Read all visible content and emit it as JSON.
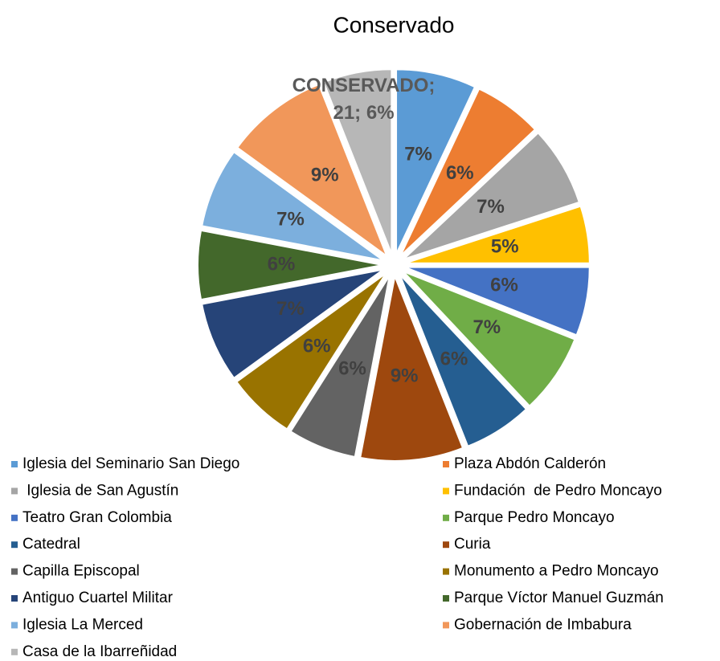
{
  "chart_data": {
    "type": "pie",
    "title": "Conservado",
    "categories": [
      "Iglesia del Seminario San Diego",
      "Plaza Abdón Calderón",
      " Iglesia de San Agustín",
      "Fundación  de Pedro Moncayo",
      "Teatro Gran Colombia",
      "Parque Pedro Moncayo",
      "Catedral",
      "Curia",
      "Capilla Episcopal",
      "Monumento a Pedro Moncayo",
      "Antiguo Cuartel Militar",
      "Parque Víctor Manuel Guzmán",
      "Iglesia La Merced",
      "Gobernación de Imbabura",
      "Casa de la Ibarreñidad"
    ],
    "values": [
      7,
      6,
      7,
      5,
      6,
      7,
      6,
      9,
      6,
      6,
      7,
      6,
      7,
      9,
      6
    ],
    "value_labels": [
      "7%",
      "6%",
      "7%",
      "5%",
      "6%",
      "7%",
      "6%",
      "9%",
      "6%",
      "6%",
      "7%",
      "6%",
      "7%",
      "9%",
      "CONSERVADO; 21; 6%"
    ],
    "colors": [
      "#5b9bd5",
      "#ed7d31",
      "#a5a5a5",
      "#ffc000",
      "#4472c4",
      "#70ad47",
      "#255e91",
      "#9e480e",
      "#636363",
      "#997300",
      "#264478",
      "#43682b",
      "#7cafdd",
      "#f1975a",
      "#b7b7b7"
    ],
    "legend": "bottom"
  }
}
